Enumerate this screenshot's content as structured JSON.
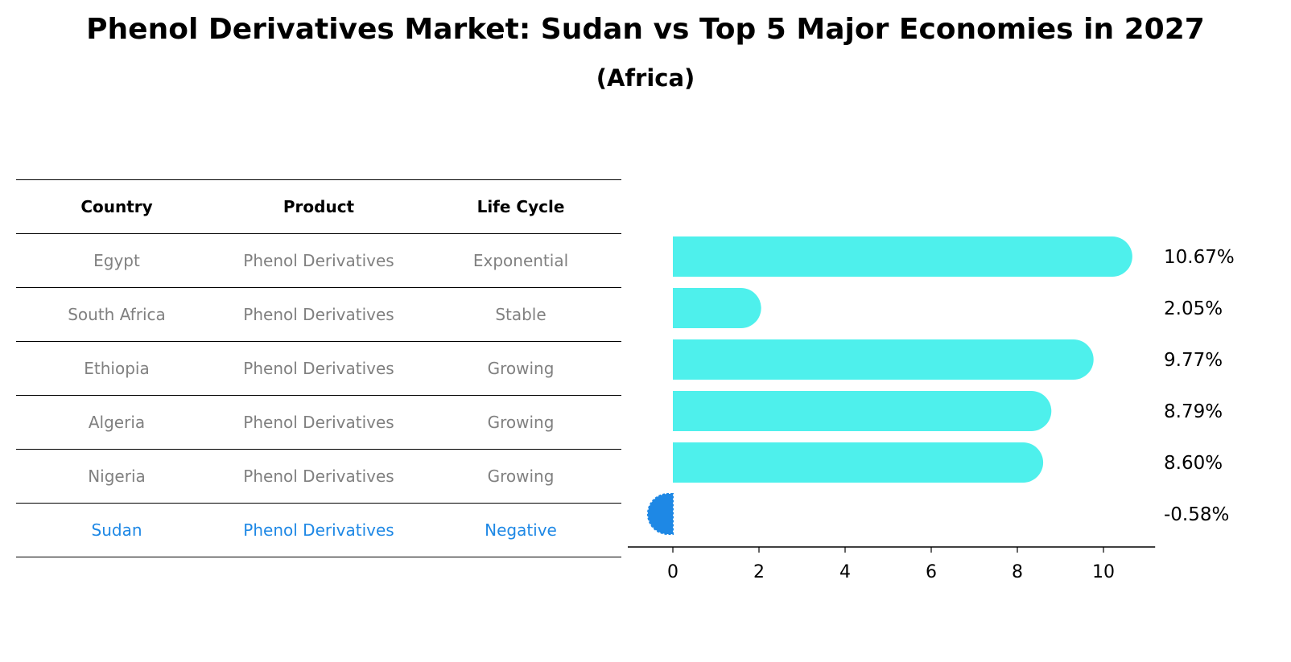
{
  "title": "Phenol Derivatives Market: Sudan vs Top 5 Major Economies in 2027",
  "subtitle": "(Africa)",
  "table": {
    "headers": [
      "Country",
      "Product",
      "Life Cycle"
    ],
    "rows": [
      {
        "country": "Egypt",
        "product": "Phenol Derivatives",
        "life_cycle": "Exponential"
      },
      {
        "country": "South Africa",
        "product": "Phenol Derivatives",
        "life_cycle": "Stable"
      },
      {
        "country": "Ethiopia",
        "product": "Phenol Derivatives",
        "life_cycle": "Growing"
      },
      {
        "country": "Algeria",
        "product": "Phenol Derivatives",
        "life_cycle": "Growing"
      },
      {
        "country": "Nigeria",
        "product": "Phenol Derivatives",
        "life_cycle": "Growing"
      },
      {
        "country": "Sudan",
        "product": "Phenol Derivatives",
        "life_cycle": "Negative"
      }
    ]
  },
  "colors": {
    "bar": "#4ef0ec",
    "highlight": "#1e88e5",
    "muted_text": "#808080"
  },
  "chart_data": {
    "type": "bar",
    "orientation": "horizontal",
    "categories": [
      "Egypt",
      "South Africa",
      "Ethiopia",
      "Algeria",
      "Nigeria",
      "Sudan"
    ],
    "values": [
      10.67,
      2.05,
      9.77,
      8.79,
      8.6,
      -0.58
    ],
    "value_labels": [
      "10.67%",
      "2.05%",
      "9.77%",
      "8.79%",
      "8.60%",
      "-0.58%"
    ],
    "xticks": [
      0,
      2,
      4,
      6,
      8,
      10
    ],
    "xlim": [
      -1.2,
      11.2
    ],
    "xlabel": "",
    "ylabel": "",
    "grid": false
  }
}
